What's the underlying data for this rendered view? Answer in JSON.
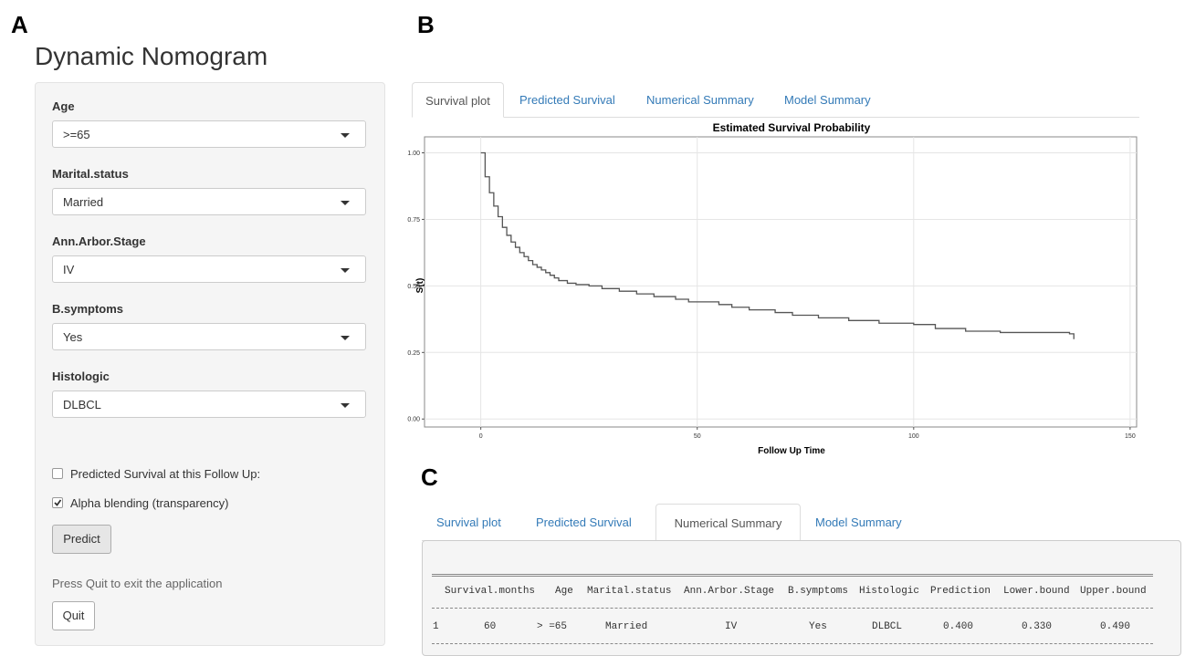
{
  "panel_labels": [
    "A",
    "B",
    "C"
  ],
  "app_title": "Dynamic Nomogram",
  "inputs": [
    {
      "label": "Age",
      "value": ">=65"
    },
    {
      "label": "Marital.status",
      "value": "Married"
    },
    {
      "label": "Ann.Arbor.Stage",
      "value": "IV"
    },
    {
      "label": "B.symptoms",
      "value": "Yes"
    },
    {
      "label": "Histologic",
      "value": "DLBCL"
    }
  ],
  "checkboxes": [
    {
      "label": "Predicted Survival at this Follow Up:",
      "checked": false
    },
    {
      "label": "Alpha blending (transparency)",
      "checked": true
    }
  ],
  "predict_button": "Predict",
  "quit_note": "Press Quit to exit the application",
  "quit_button": "Quit",
  "tabs": [
    "Survival plot",
    "Predicted Survival",
    "Numerical Summary",
    "Model Summary"
  ],
  "chart_data": {
    "type": "step",
    "title": "Estimated Survival Probability",
    "x_label": "Follow Up Time",
    "y_label": "S(t)",
    "x": [
      0,
      1,
      2,
      3,
      4,
      5,
      6,
      7,
      8,
      9,
      10,
      11,
      12,
      13,
      14,
      15,
      16,
      17,
      18,
      20,
      22,
      25,
      28,
      32,
      36,
      40,
      45,
      48,
      55,
      58,
      62,
      68,
      72,
      78,
      85,
      92,
      100,
      105,
      112,
      120,
      136,
      137
    ],
    "series": [
      {
        "color": "#555555",
        "values": [
          1.0,
          0.91,
          0.85,
          0.8,
          0.76,
          0.72,
          0.69,
          0.665,
          0.645,
          0.625,
          0.61,
          0.595,
          0.58,
          0.57,
          0.56,
          0.55,
          0.54,
          0.53,
          0.52,
          0.51,
          0.505,
          0.5,
          0.49,
          0.48,
          0.47,
          0.46,
          0.45,
          0.44,
          0.43,
          0.42,
          0.41,
          0.4,
          0.39,
          0.38,
          0.37,
          0.36,
          0.355,
          0.34,
          0.33,
          0.325,
          0.32,
          0.3
        ]
      }
    ],
    "xlim": [
      -13,
      151.5
    ],
    "xticks": [
      0,
      50,
      100,
      150
    ],
    "ylim": [
      -0.03,
      1.06
    ],
    "yticks": [
      {
        "value": 0,
        "label": "0.00"
      },
      {
        "value": 0.25,
        "label": "0.25"
      },
      {
        "value": 0.5,
        "label": "0.50"
      },
      {
        "value": 0.75,
        "label": "0.75"
      },
      {
        "value": 1,
        "label": "1.00"
      }
    ],
    "grid": true
  },
  "table": {
    "header": [
      "Survival.months",
      "Age",
      "Marital.status",
      "Ann.Arbor.Stage",
      "B.symptoms",
      "Histologic",
      "Prediction",
      "Lower.bound",
      "Upper.bound"
    ],
    "rows": [
      [
        "1",
        "60",
        "> =65",
        "Married",
        "IV",
        "Yes",
        "DLBCL",
        "0.400",
        "0.330",
        "0.490"
      ]
    ]
  }
}
